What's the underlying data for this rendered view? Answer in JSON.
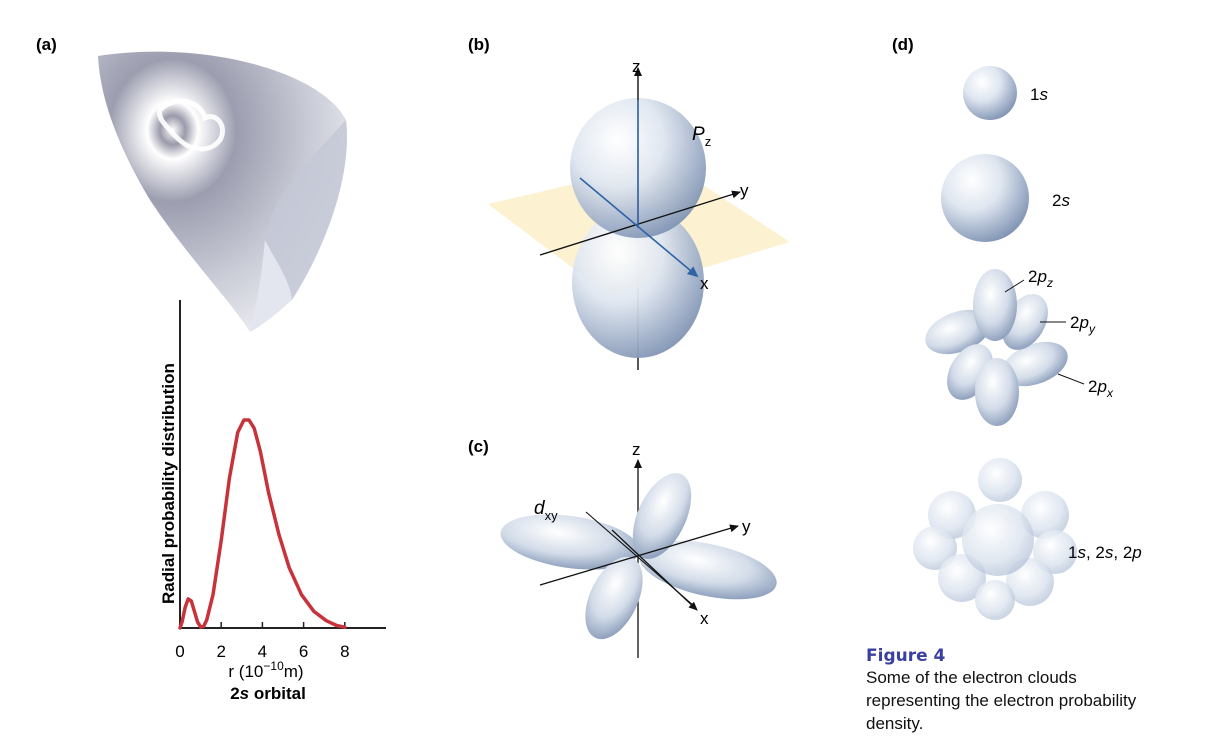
{
  "panel_labels": {
    "a": "(a)",
    "b": "(b)",
    "c": "(c)",
    "d": "(d)"
  },
  "panel_a": {
    "chart_data": {
      "type": "line",
      "ylabel": "Radial probability distribution",
      "xlabel_main": "r (10",
      "xlabel_exp": "−10",
      "xlabel_unit": "m)",
      "title": "orbital",
      "title_prefix": "2",
      "title_italic": "s",
      "x_ticks": [
        "0",
        "2",
        "4",
        "6",
        "8"
      ],
      "xlim": [
        0,
        10
      ],
      "ylim": [
        0,
        1
      ],
      "color": "#c8323a",
      "x": [
        0,
        0.1,
        0.25,
        0.4,
        0.55,
        0.7,
        0.85,
        1.0,
        1.15,
        1.3,
        1.6,
        2.0,
        2.4,
        2.8,
        3.1,
        3.35,
        3.6,
        3.9,
        4.3,
        4.8,
        5.3,
        5.9,
        6.5,
        7.1,
        7.6,
        8.0
      ],
      "y": [
        0,
        0.03,
        0.1,
        0.14,
        0.13,
        0.08,
        0.03,
        0.005,
        0.008,
        0.04,
        0.16,
        0.42,
        0.72,
        0.94,
        1.0,
        1.0,
        0.96,
        0.85,
        0.65,
        0.45,
        0.29,
        0.16,
        0.08,
        0.035,
        0.012,
        0.004
      ]
    }
  },
  "panel_b": {
    "axis_z": "z",
    "axis_y": "y",
    "axis_x": "x",
    "orbital_letter": "P",
    "orbital_sub": "z"
  },
  "panel_c": {
    "axis_z": "z",
    "axis_y": "y",
    "axis_x": "x",
    "orbital_letter": "d",
    "orbital_sub": "xy"
  },
  "panel_d": {
    "label_1s_num": "1",
    "label_1s_letter": "s",
    "label_2s_num": "2",
    "label_2s_letter": "s",
    "label_2pz_num": "2",
    "label_2pz_p": "p",
    "label_2pz_sub": "z",
    "label_2py_num": "2",
    "label_2py_p": "p",
    "label_2py_sub": "y",
    "label_2px_num": "2",
    "label_2px_p": "p",
    "label_2px_sub": "x",
    "combo_a_num": "1",
    "combo_a_letter": "s",
    "combo_sep1": ", 2",
    "combo_b_letter": "s",
    "combo_sep2": ", 2",
    "combo_c_letter": "p"
  },
  "caption": {
    "figure_label": "Figure 4",
    "text": "Some of the electron clouds representing the electron probability density."
  }
}
